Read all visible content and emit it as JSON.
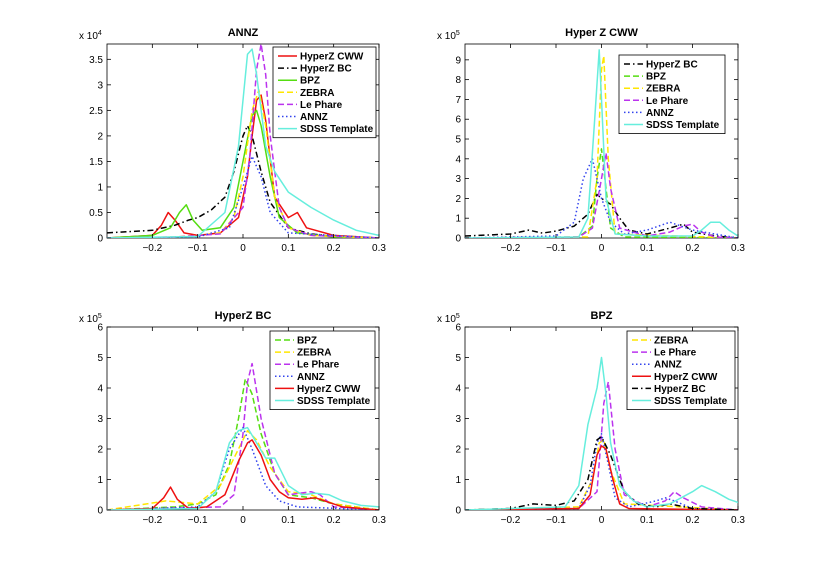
{
  "chart_data": [
    {
      "type": "line",
      "title": "ANNZ",
      "xlim": [
        -0.3,
        0.3
      ],
      "ylim": [
        0,
        3.8
      ],
      "yscale": {
        "base": "x 10",
        "exponent": "4"
      },
      "xticks": [
        -0.2,
        -0.1,
        0,
        0.1,
        0.2,
        0.3
      ],
      "xtick_labels": [
        "−0.2",
        "−0.1",
        "0",
        "0.1",
        "0.2",
        "0.3"
      ],
      "yticks": [
        0,
        0.5,
        1,
        1.5,
        2,
        2.5,
        3,
        3.5
      ],
      "ytick_labels": [
        "0",
        "0.5",
        "1",
        "1.5",
        "2",
        "2.5",
        "3",
        "3.5"
      ],
      "legend_position": "top-right",
      "series": [
        {
          "name": "HyperZ CWW",
          "color": "#ee1111",
          "dash": "solid",
          "x": [
            -0.3,
            -0.2,
            -0.18,
            -0.165,
            -0.15,
            -0.13,
            -0.1,
            -0.05,
            -0.01,
            0.01,
            0.02,
            0.03,
            0.04,
            0.05,
            0.07,
            0.1,
            0.12,
            0.14,
            0.2,
            0.3
          ],
          "y": [
            0,
            0.05,
            0.25,
            0.5,
            0.35,
            0.1,
            0.05,
            0.1,
            0.4,
            1.2,
            2.0,
            2.7,
            2.8,
            2.3,
            0.8,
            0.4,
            0.5,
            0.2,
            0.05,
            0
          ]
        },
        {
          "name": "HyperZ BC",
          "color": "#000000",
          "dash": "dashdot",
          "x": [
            -0.3,
            -0.2,
            -0.15,
            -0.12,
            -0.1,
            -0.07,
            -0.04,
            -0.02,
            0,
            0.01,
            0.02,
            0.04,
            0.06,
            0.1,
            0.15,
            0.2,
            0.3
          ],
          "y": [
            0.1,
            0.15,
            0.25,
            0.35,
            0.4,
            0.55,
            0.8,
            1.3,
            2.0,
            2.2,
            2.0,
            1.3,
            0.7,
            0.2,
            0.08,
            0.03,
            0
          ]
        },
        {
          "name": "BPZ",
          "color": "#55dd11",
          "dash": "solid",
          "x": [
            -0.3,
            -0.2,
            -0.16,
            -0.14,
            -0.125,
            -0.11,
            -0.09,
            -0.05,
            -0.02,
            0,
            0.02,
            0.03,
            0.04,
            0.06,
            0.08,
            0.12,
            0.2,
            0.3
          ],
          "y": [
            0,
            0.05,
            0.2,
            0.5,
            0.65,
            0.35,
            0.15,
            0.2,
            0.6,
            1.5,
            2.4,
            2.5,
            2.2,
            1.2,
            0.4,
            0.1,
            0.02,
            0
          ]
        },
        {
          "name": "ZEBRA",
          "color": "#ffe600",
          "dash": "dashed",
          "x": [
            -0.3,
            -0.15,
            -0.1,
            -0.05,
            -0.02,
            0,
            0.02,
            0.035,
            0.05,
            0.07,
            0.1,
            0.15,
            0.3
          ],
          "y": [
            0,
            0.02,
            0.05,
            0.1,
            0.4,
            1.2,
            2.5,
            2.9,
            2.2,
            0.8,
            0.2,
            0.05,
            0
          ]
        },
        {
          "name": "Le Phare",
          "color": "#bb33ee",
          "dash": "dashed",
          "x": [
            -0.3,
            -0.15,
            -0.05,
            0,
            0.015,
            0.03,
            0.04,
            0.05,
            0.06,
            0.08,
            0.1,
            0.15,
            0.3
          ],
          "y": [
            0,
            0.02,
            0.08,
            0.6,
            1.6,
            3.3,
            3.8,
            3.2,
            2.0,
            0.6,
            0.2,
            0.05,
            0
          ]
        },
        {
          "name": "ANNZ",
          "color": "#3344ee",
          "dash": "dotted",
          "x": [
            -0.3,
            -0.1,
            -0.03,
            0,
            0.02,
            0.04,
            0.06,
            0.1,
            0.3
          ],
          "y": [
            0,
            0.02,
            0.2,
            1.0,
            1.6,
            1.2,
            0.5,
            0.1,
            0
          ]
        },
        {
          "name": "SDSS Template",
          "color": "#66eedd",
          "dash": "solid",
          "x": [
            -0.3,
            -0.1,
            -0.04,
            -0.01,
            0.01,
            0.02,
            0.03,
            0.05,
            0.07,
            0.1,
            0.15,
            0.2,
            0.25,
            0.3
          ],
          "y": [
            0,
            0.03,
            0.5,
            1.8,
            3.6,
            3.7,
            3.2,
            1.8,
            1.3,
            0.9,
            0.6,
            0.35,
            0.15,
            0.05
          ]
        }
      ]
    },
    {
      "type": "line",
      "title": "Hyper Z CWW",
      "xlim": [
        -0.3,
        0.3
      ],
      "ylim": [
        0,
        9.8
      ],
      "yscale": {
        "base": "x 10",
        "exponent": "5"
      },
      "xticks": [
        -0.2,
        -0.1,
        0,
        0.1,
        0.2,
        0.3
      ],
      "xtick_labels": [
        "−0.2",
        "−0.1",
        "0",
        "0.1",
        "0.2",
        "0.3"
      ],
      "yticks": [
        0,
        1,
        2,
        3,
        4,
        5,
        6,
        7,
        8,
        9
      ],
      "ytick_labels": [
        "0",
        "1",
        "2",
        "3",
        "4",
        "5",
        "6",
        "7",
        "8",
        "9"
      ],
      "legend_position": "top-right",
      "series": [
        {
          "name": "HyperZ BC",
          "color": "#000000",
          "dash": "dashdot",
          "x": [
            -0.3,
            -0.2,
            -0.16,
            -0.13,
            -0.1,
            -0.06,
            -0.03,
            -0.01,
            0,
            0.02,
            0.04,
            0.06,
            0.1,
            0.15,
            0.18,
            0.2,
            0.25,
            0.3
          ],
          "y": [
            0.1,
            0.2,
            0.4,
            0.25,
            0.35,
            0.6,
            1.2,
            2.2,
            2.0,
            1.7,
            1.0,
            0.4,
            0.2,
            0.5,
            0.7,
            0.3,
            0.1,
            0
          ]
        },
        {
          "name": "BPZ",
          "color": "#55dd11",
          "dash": "dashed",
          "x": [
            -0.3,
            -0.05,
            -0.02,
            -0.01,
            0,
            0.01,
            0.02,
            0.05,
            0.3
          ],
          "y": [
            0,
            0.05,
            0.6,
            3.0,
            4.5,
            2.5,
            0.5,
            0.05,
            0
          ]
        },
        {
          "name": "ZEBRA",
          "color": "#ffe600",
          "dash": "dashed",
          "x": [
            -0.3,
            -0.03,
            -0.01,
            0,
            0.005,
            0.015,
            0.03,
            0.3
          ],
          "y": [
            0,
            0.05,
            3.0,
            8.5,
            9.2,
            4.0,
            0.2,
            0
          ]
        },
        {
          "name": "Le Phare",
          "color": "#bb33ee",
          "dash": "dashed",
          "x": [
            -0.3,
            -0.05,
            -0.02,
            0,
            0.01,
            0.02,
            0.04,
            0.1,
            0.15,
            0.18,
            0.2,
            0.22,
            0.25,
            0.3
          ],
          "y": [
            0,
            0.05,
            0.5,
            3.0,
            4.3,
            2.5,
            0.5,
            0.1,
            0.3,
            0.6,
            0.7,
            0.3,
            0.05,
            0
          ]
        },
        {
          "name": "ANNZ",
          "color": "#3344ee",
          "dash": "dotted",
          "x": [
            -0.3,
            -0.1,
            -0.06,
            -0.04,
            -0.02,
            0,
            0.02,
            0.05,
            0.1,
            0.15,
            0.2,
            0.3
          ],
          "y": [
            0,
            0.1,
            0.8,
            3.0,
            4.0,
            2.0,
            0.8,
            0.2,
            0.4,
            0.8,
            0.4,
            0
          ]
        },
        {
          "name": "SDSS Template",
          "color": "#66eedd",
          "dash": "solid",
          "x": [
            -0.3,
            -0.05,
            -0.03,
            -0.015,
            -0.005,
            0,
            0.01,
            0.03,
            0.1,
            0.2,
            0.22,
            0.24,
            0.26,
            0.28,
            0.3
          ],
          "y": [
            0,
            0.05,
            1.0,
            6.0,
            9.5,
            7.0,
            2.0,
            0.2,
            0.1,
            0.1,
            0.4,
            0.8,
            0.8,
            0.4,
            0.1
          ]
        }
      ]
    },
    {
      "type": "line",
      "title": "HyperZ BC",
      "xlim": [
        -0.3,
        0.3
      ],
      "ylim": [
        0,
        6
      ],
      "yscale": {
        "base": "x 10",
        "exponent": "5"
      },
      "xticks": [
        -0.2,
        -0.1,
        0,
        0.1,
        0.2,
        0.3
      ],
      "xtick_labels": [
        "−0.2",
        "−0.1",
        "0",
        "0.1",
        "0.2",
        "0.3"
      ],
      "yticks": [
        0,
        1,
        2,
        3,
        4,
        5,
        6
      ],
      "ytick_labels": [
        "0",
        "1",
        "2",
        "3",
        "4",
        "5",
        "6"
      ],
      "legend_position": "top-right",
      "series": [
        {
          "name": "BPZ",
          "color": "#55dd11",
          "dash": "dashed",
          "x": [
            -0.3,
            -0.15,
            -0.1,
            -0.06,
            -0.03,
            -0.01,
            0.005,
            0.02,
            0.04,
            0.07,
            0.1,
            0.15,
            0.2,
            0.3
          ],
          "y": [
            0,
            0.1,
            0.2,
            0.5,
            1.5,
            3.0,
            4.3,
            3.8,
            2.5,
            1.2,
            0.5,
            0.4,
            0.2,
            0
          ]
        },
        {
          "name": "ZEBRA",
          "color": "#ffe600",
          "dash": "dashed",
          "x": [
            -0.3,
            -0.17,
            -0.1,
            -0.05,
            -0.01,
            0.01,
            0.03,
            0.06,
            0.1,
            0.15,
            0.2,
            0.3
          ],
          "y": [
            0,
            0.3,
            0.2,
            0.8,
            2.0,
            2.6,
            2.3,
            1.4,
            0.6,
            0.5,
            0.2,
            0
          ]
        },
        {
          "name": "Le Phare",
          "color": "#bb33ee",
          "dash": "dashed",
          "x": [
            -0.3,
            -0.05,
            -0.02,
            0,
            0.01,
            0.02,
            0.04,
            0.07,
            0.1,
            0.15,
            0.17,
            0.2,
            0.3
          ],
          "y": [
            0,
            0.1,
            0.5,
            2.5,
            4.2,
            4.8,
            3.0,
            1.2,
            0.5,
            0.6,
            0.5,
            0.1,
            0
          ]
        },
        {
          "name": "ANNZ",
          "color": "#3344ee",
          "dash": "dotted",
          "x": [
            -0.3,
            -0.1,
            -0.06,
            -0.03,
            0,
            0.02,
            0.05,
            0.08,
            0.12,
            0.3
          ],
          "y": [
            0,
            0.1,
            0.6,
            2.0,
            2.7,
            2.0,
            0.8,
            0.3,
            0.1,
            0
          ]
        },
        {
          "name": "HyperZ CWW",
          "color": "#ee1111",
          "dash": "solid",
          "x": [
            -0.3,
            -0.2,
            -0.175,
            -0.16,
            -0.145,
            -0.12,
            -0.08,
            -0.04,
            -0.01,
            0.01,
            0.02,
            0.04,
            0.06,
            0.08,
            0.1,
            0.13,
            0.16,
            0.19,
            0.22,
            0.3
          ],
          "y": [
            0,
            0.05,
            0.4,
            0.75,
            0.35,
            0.05,
            0.1,
            0.5,
            1.6,
            2.2,
            2.3,
            1.8,
            1.0,
            0.6,
            0.4,
            0.35,
            0.4,
            0.25,
            0.1,
            0
          ]
        },
        {
          "name": "SDSS Template",
          "color": "#66eedd",
          "dash": "solid",
          "x": [
            -0.3,
            -0.1,
            -0.06,
            -0.03,
            -0.01,
            0.01,
            0.03,
            0.05,
            0.07,
            0.1,
            0.13,
            0.16,
            0.19,
            0.22,
            0.26,
            0.3
          ],
          "y": [
            0,
            0.05,
            0.6,
            2.2,
            2.6,
            2.7,
            2.2,
            1.7,
            1.7,
            0.8,
            0.5,
            0.55,
            0.5,
            0.3,
            0.15,
            0.1
          ]
        }
      ]
    },
    {
      "type": "line",
      "title": "BPZ",
      "xlim": [
        -0.3,
        0.3
      ],
      "ylim": [
        0,
        6
      ],
      "yscale": {
        "base": "x 10",
        "exponent": "5"
      },
      "xticks": [
        -0.2,
        -0.1,
        0,
        0.1,
        0.2,
        0.3
      ],
      "xtick_labels": [
        "−0.2",
        "−0.1",
        "0",
        "0.1",
        "0.2",
        "0.3"
      ],
      "yticks": [
        0,
        1,
        2,
        3,
        4,
        5,
        6
      ],
      "ytick_labels": [
        "0",
        "1",
        "2",
        "3",
        "4",
        "5",
        "6"
      ],
      "legend_position": "top-right",
      "series": [
        {
          "name": "ZEBRA",
          "color": "#ffe600",
          "dash": "dashed",
          "x": [
            -0.3,
            -0.05,
            -0.02,
            -0.005,
            0.005,
            0.02,
            0.05,
            0.3
          ],
          "y": [
            0,
            0.1,
            1.0,
            2.2,
            2.3,
            1.3,
            0.2,
            0
          ]
        },
        {
          "name": "Le Phare",
          "color": "#bb33ee",
          "dash": "dashed",
          "x": [
            -0.3,
            -0.05,
            -0.01,
            0.005,
            0.015,
            0.03,
            0.05,
            0.1,
            0.14,
            0.16,
            0.18,
            0.22,
            0.3
          ],
          "y": [
            0,
            0.05,
            0.6,
            3.5,
            4.2,
            2.0,
            0.5,
            0.1,
            0.3,
            0.6,
            0.4,
            0.1,
            0
          ]
        },
        {
          "name": "ANNZ",
          "color": "#3344ee",
          "dash": "dotted",
          "x": [
            -0.3,
            -0.05,
            -0.025,
            -0.01,
            0,
            0.015,
            0.03,
            0.06,
            0.12,
            0.14,
            0.16,
            0.2,
            0.3
          ],
          "y": [
            0,
            0.05,
            0.8,
            2.2,
            2.5,
            1.5,
            0.4,
            0.1,
            0.3,
            0.4,
            0.3,
            0.05,
            0
          ]
        },
        {
          "name": "HyperZ CWW",
          "color": "#ee1111",
          "dash": "solid",
          "x": [
            -0.3,
            -0.05,
            -0.025,
            -0.01,
            0,
            0.01,
            0.025,
            0.04,
            0.06,
            0.3
          ],
          "y": [
            0,
            0.05,
            0.5,
            1.8,
            2.1,
            2.0,
            1.0,
            0.2,
            0.05,
            0
          ]
        },
        {
          "name": "HyperZ BC",
          "color": "#000000",
          "dash": "dashdot",
          "x": [
            -0.3,
            -0.2,
            -0.15,
            -0.1,
            -0.06,
            -0.03,
            -0.01,
            0,
            0.02,
            0.05,
            0.08,
            0.12,
            0.15,
            0.2,
            0.3
          ],
          "y": [
            0,
            0.05,
            0.2,
            0.15,
            0.3,
            1.0,
            2.3,
            2.4,
            1.8,
            0.6,
            0.2,
            0.1,
            0.2,
            0.05,
            0
          ]
        },
        {
          "name": "SDSS Template",
          "color": "#66eedd",
          "dash": "solid",
          "x": [
            -0.3,
            -0.08,
            -0.05,
            -0.03,
            -0.01,
            0,
            0.01,
            0.02,
            0.04,
            0.07,
            0.1,
            0.15,
            0.2,
            0.22,
            0.25,
            0.28,
            0.3
          ],
          "y": [
            0,
            0.1,
            0.8,
            2.8,
            4.0,
            5.0,
            3.8,
            2.2,
            0.8,
            0.3,
            0.1,
            0.2,
            0.6,
            0.8,
            0.6,
            0.35,
            0.25
          ]
        }
      ]
    }
  ]
}
